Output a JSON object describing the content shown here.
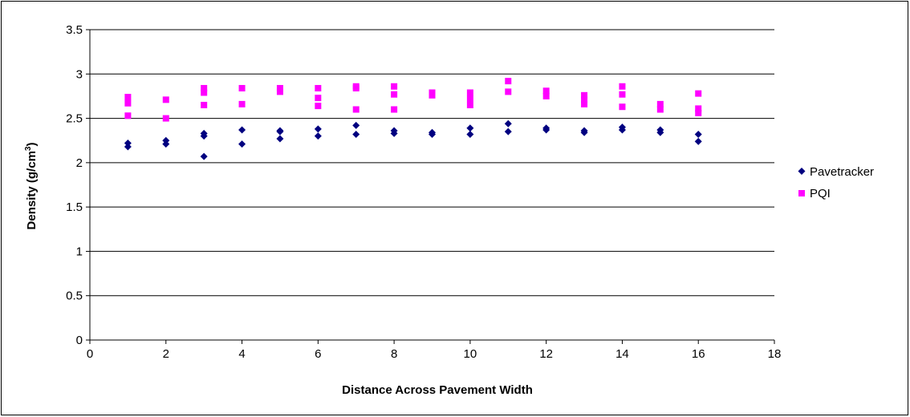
{
  "chart_data": {
    "type": "scatter",
    "title": "",
    "xlabel": "Distance Across Pavement Width",
    "ylabel_main": "Density (g/cm",
    "ylabel_sup": "3",
    "ylabel_end": ")",
    "xlim": [
      0,
      18
    ],
    "ylim": [
      0,
      3.5
    ],
    "xticks": [
      0,
      2,
      4,
      6,
      8,
      10,
      12,
      14,
      16,
      18
    ],
    "xtick_labels": [
      "0",
      "2",
      "4",
      "6",
      "8",
      "10",
      "12",
      "14",
      "16",
      "18"
    ],
    "yticks": [
      0,
      0.5,
      1,
      1.5,
      2,
      2.5,
      3,
      3.5
    ],
    "ytick_labels": [
      "0",
      "0.5",
      "1",
      "1.5",
      "2",
      "2.5",
      "3",
      "3.5"
    ],
    "grid": "horizontal",
    "legend_position": "right",
    "series": [
      {
        "name": "Pavetracker",
        "marker": "diamond",
        "color": "#000080",
        "points": [
          [
            1,
            2.18
          ],
          [
            1,
            2.22
          ],
          [
            2,
            2.21
          ],
          [
            2,
            2.25
          ],
          [
            3,
            2.07
          ],
          [
            3,
            2.3
          ],
          [
            3,
            2.33
          ],
          [
            4,
            2.21
          ],
          [
            4,
            2.37
          ],
          [
            5,
            2.27
          ],
          [
            5,
            2.35
          ],
          [
            5,
            2.36
          ],
          [
            6,
            2.3
          ],
          [
            6,
            2.38
          ],
          [
            7,
            2.32
          ],
          [
            7,
            2.42
          ],
          [
            8,
            2.33
          ],
          [
            8,
            2.36
          ],
          [
            9,
            2.32
          ],
          [
            9,
            2.34
          ],
          [
            10,
            2.32
          ],
          [
            10,
            2.39
          ],
          [
            11,
            2.35
          ],
          [
            11,
            2.44
          ],
          [
            12,
            2.37
          ],
          [
            12,
            2.39
          ],
          [
            13,
            2.34
          ],
          [
            13,
            2.36
          ],
          [
            14,
            2.37
          ],
          [
            14,
            2.4
          ],
          [
            15,
            2.34
          ],
          [
            15,
            2.37
          ],
          [
            16,
            2.24
          ],
          [
            16,
            2.32
          ]
        ]
      },
      {
        "name": "PQI",
        "marker": "square",
        "color": "#FF00FF",
        "points": [
          [
            1,
            2.53
          ],
          [
            1,
            2.67
          ],
          [
            1,
            2.74
          ],
          [
            2,
            2.5
          ],
          [
            2,
            2.71
          ],
          [
            3,
            2.65
          ],
          [
            3,
            2.79
          ],
          [
            3,
            2.84
          ],
          [
            4,
            2.66
          ],
          [
            4,
            2.84
          ],
          [
            5,
            2.8
          ],
          [
            5,
            2.84
          ],
          [
            6,
            2.64
          ],
          [
            6,
            2.73
          ],
          [
            6,
            2.84
          ],
          [
            7,
            2.6
          ],
          [
            7,
            2.84
          ],
          [
            7,
            2.86
          ],
          [
            8,
            2.6
          ],
          [
            8,
            2.77
          ],
          [
            8,
            2.86
          ],
          [
            9,
            2.76
          ],
          [
            9,
            2.79
          ],
          [
            10,
            2.65
          ],
          [
            10,
            2.72
          ],
          [
            10,
            2.79
          ],
          [
            11,
            2.8
          ],
          [
            11,
            2.92
          ],
          [
            12,
            2.75
          ],
          [
            12,
            2.81
          ],
          [
            13,
            2.66
          ],
          [
            13,
            2.71
          ],
          [
            13,
            2.76
          ],
          [
            14,
            2.63
          ],
          [
            14,
            2.77
          ],
          [
            14,
            2.86
          ],
          [
            15,
            2.6
          ],
          [
            15,
            2.66
          ],
          [
            16,
            2.56
          ],
          [
            16,
            2.61
          ],
          [
            16,
            2.78
          ]
        ]
      }
    ]
  }
}
